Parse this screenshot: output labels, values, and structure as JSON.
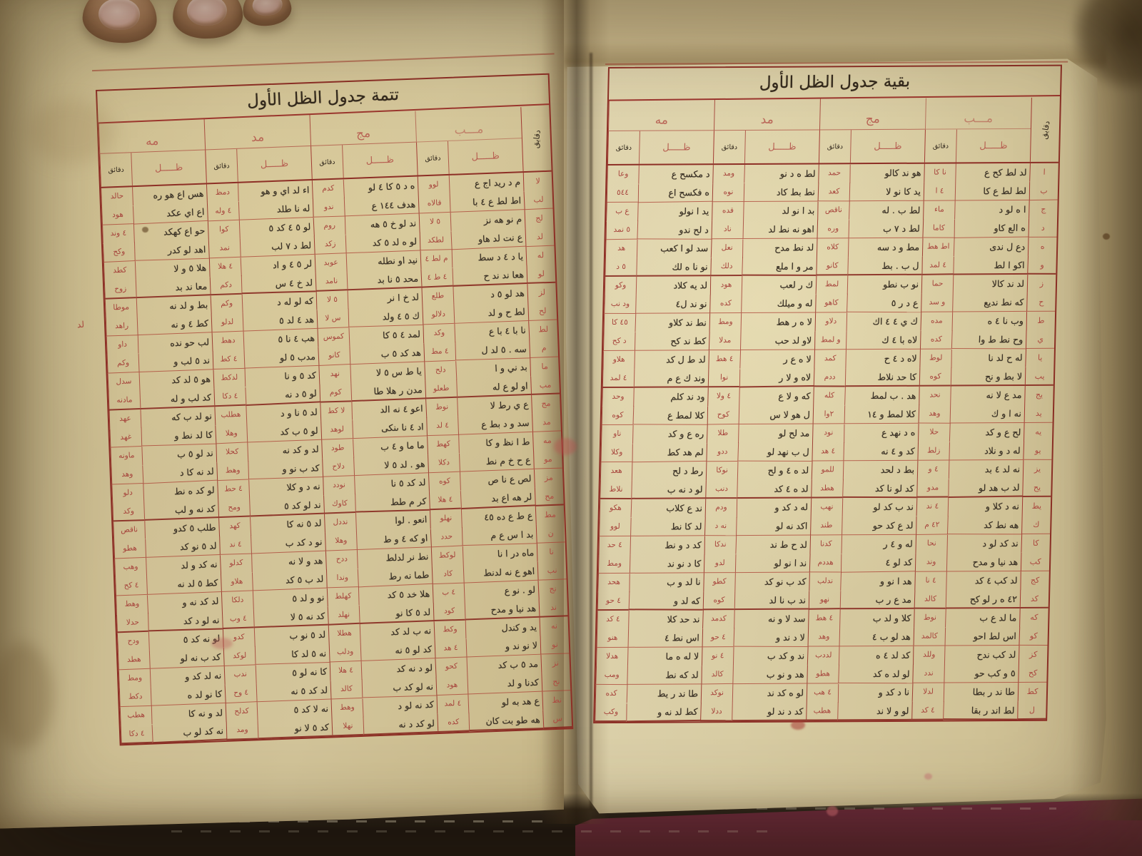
{
  "colors": {
    "paper_left": "#cfc093",
    "paper_right": "#d8cba2",
    "grid_red": "#a23a32",
    "ink_black": "#3a3126",
    "ink_red": "#a7443c",
    "cover_maroon": "#5e2433",
    "shadow_dark": "#171210",
    "skin": "#ab805f"
  },
  "right_page": {
    "title": "بقية جدول الظل الأول",
    "corner_label": "دقايق",
    "degrees": [
      "مـــب",
      "مج",
      "مد",
      "مه"
    ],
    "subhead": {
      "shadow": "ظـــــل",
      "minutes": "دقائق"
    },
    "rows": [
      [
        "ا",
        "لد لط كح ع",
        "نا كا",
        "هو ند كالو",
        "حمد",
        "لط ه د نو",
        "ومد",
        "د مكسح ع",
        "وعا"
      ],
      [
        "ب",
        "لط لط ع كا",
        "٤ ا",
        "يد كا نو لا",
        "كعد",
        "نط بط كاد",
        "نوه",
        "ه فكسح اع",
        "٥٤٤"
      ],
      [
        "ج",
        "ا ه لو د",
        "ماء",
        "لط ب . له",
        "ناقص",
        "بد ا نو لد",
        "قده",
        "يد ا نولو",
        "ع ب"
      ],
      [
        "د",
        "ه الع كاو",
        "كاما",
        "لط د ٧ ب",
        "وره",
        "اهو نه نط لد",
        "ناد",
        "د لح ندو",
        "٥ نمد"
      ],
      [
        "ه",
        "دع ل ندى",
        "اط هط",
        "مط و د سه",
        "كلاه",
        "لد نط مدح",
        "نعل",
        "سد لو ا كعب",
        "هد"
      ],
      [
        "و",
        "اكو ا لط",
        "٤ لمد",
        "ل ب . بط",
        "كانو",
        "مر و ا ملع",
        "دلك",
        "نو نا ه لك",
        "٥ د"
      ],
      [
        "ز",
        "لد ند كالا",
        "حما",
        "نو ب نطو",
        "لمط",
        "ك ر لعب",
        "هود",
        "لد يه كلاد",
        "وكو"
      ],
      [
        "ح",
        "كه نط نديع",
        "و سد",
        "ع د ر ٥",
        "كاهو",
        "له و ميلك",
        "كده",
        "نو ند ل٤",
        "ود نب"
      ],
      [
        "ط",
        "وب نا ٤ ه",
        "مده",
        "ك ي ٤ ٤ اك",
        "دلاو",
        "لا ه ر هط",
        "ومط",
        "نط ند كلاو",
        "٤٥ كا"
      ],
      [
        "ي",
        "وح نط ط وا",
        "كده",
        "لاه با ٤ ك",
        "و لمط",
        "لاو لد حب",
        "مدلا",
        "كط ند كح",
        "د كح"
      ],
      [
        "يا",
        "له ح لد نا",
        "لوط",
        "لاه د ٤ ح",
        "كمد",
        "لا ه ع ر",
        "٤ هط",
        "لد ط ل كد",
        "هلاو"
      ],
      [
        "يب",
        "لا بط و نح",
        "كوه",
        "كا حد نلاط",
        "ددم",
        "لاه و لا ر",
        "نوا",
        "وند ك ع م",
        "٤ لمد"
      ],
      [
        "يج",
        "مد ع لا نه",
        "نحد",
        "هد . ب لمط",
        "كله",
        "كه و لا ع",
        "٤ ولا",
        "ود ند كلم",
        "وحد"
      ],
      [
        "يد",
        "نه ا و ك",
        "وهد",
        "كلا لمط و ١٤",
        "٢وا",
        "ل هو لا س",
        "كوح",
        "كلا لمط ع",
        "كوه"
      ],
      [
        "يه",
        "لح ع و كد",
        "حلا",
        "ه د نهد ع",
        "نود",
        "مد لح لو",
        "طلا",
        "ره ع و كد",
        "ناو"
      ],
      [
        "يو",
        "له د و نلاد",
        "زلط",
        "كد و ٤ نه",
        "٤ هد",
        "ل ب نهد لو",
        "ددو",
        "لم هد كط",
        "وكلا"
      ],
      [
        "يز",
        "نه لد ٤ بد",
        "٤ و",
        "بط د لحد",
        "للمو",
        "لد ه ٤ و لح",
        "نوكا",
        "رط د لح",
        "هعد"
      ],
      [
        "يح",
        "لد ب هد لو",
        "مدو",
        "كد لو نا كد",
        "هطد",
        "لد ه ٤ كد",
        "دنب",
        "لو د نه ب",
        "نلاط"
      ],
      [
        "يط",
        "نه د كلا و",
        "٤ ند",
        "ند ب كد لو",
        "نهب",
        "له د كد و",
        "ودم",
        "ند ع كلاب",
        "هكو"
      ],
      [
        "ك",
        "هه نط كد",
        "٤٢ م",
        "لد ع كد حو",
        "طند",
        "اكد نه لو",
        "نه د",
        "لد كا نط",
        "لوو"
      ],
      [
        "كا",
        "ند كد لو د",
        "نحا",
        "له و ٤ ر",
        "كدنا",
        "لد ح ط ند",
        "ندكا",
        "كد د و نط",
        "٤ حد"
      ],
      [
        "كب",
        "هد نيا و مدح",
        "وند",
        "كد لو ٤",
        "هددم",
        "ند ا نو لو",
        "لدو",
        "كا د نو ند",
        "ومط"
      ],
      [
        "كج",
        "لد كب ٤ كد",
        "٤ نا",
        "هد ا نو و",
        "ندلب",
        "كد ب نو كد",
        "كطو",
        "نا لد و ب",
        "هحد"
      ],
      [
        "كد",
        "٤٢ ه ر لو كح",
        "كالد",
        "مد ع ر ب",
        "نهو",
        "ند ب نا لد",
        "كوه",
        "كه لد و",
        "٤ حو"
      ],
      [
        "كه",
        "ما لد ع ب",
        "نوط",
        "كلا و لد ب",
        "٤ هط",
        "سد لا و نه",
        "كدمد",
        "ند حد كلا",
        "٤ كد"
      ],
      [
        "كو",
        "اس لط احو",
        "كالمد",
        "هد لو ب ٤",
        "وهد",
        "لا د ند و",
        "٤ حو",
        "اس نط ٤",
        "هنو"
      ],
      [
        "كز",
        "لد كب ندح",
        "وللد",
        "كد لد ٤ ه",
        "لددب",
        "ند و كد ب",
        "٤ نو",
        "لا له ه ما",
        "هدلا"
      ],
      [
        "كح",
        "٥ و كب حو",
        "ندد",
        "لو لد ه كد",
        "هطو",
        "هد و نو ب",
        "كالد",
        "لد كه نط",
        "ومب"
      ],
      [
        "كط",
        "طا ند ر بطا",
        "لدلا",
        "نا د كد و",
        "٤ هب",
        "لو ه كد ند",
        "نوكد",
        "طا ند ر يط",
        "كده"
      ],
      [
        "ل",
        "لط اند ر بقا",
        "٤ كد",
        "لو و لا ند",
        "هطب",
        "كد د ند لو",
        "ددلا",
        "كط لد نه و",
        "وكب"
      ]
    ]
  },
  "left_page": {
    "title": "تتمة جدول الظل الأول",
    "corner_label": "دقايق",
    "degrees": [
      "مـــب",
      "مج",
      "مد",
      "مه"
    ],
    "subhead": {
      "shadow": "ظـــــل",
      "minutes": "دقائق"
    },
    "margin_note": "لد",
    "rows": [
      [
        "لا",
        "م د ريد اج ع",
        "لوو",
        "ه د ٥ كا ٤ لو",
        "كدم",
        "اء لد اي و هو",
        "دمظ",
        "هس اع هو ره",
        "حالد"
      ],
      [
        "لب",
        "اط لط ع ٤ با",
        "قالاه",
        "هدف ١٤٤ ع",
        "ندو",
        "له نا طلد",
        "٤ وله",
        "اع اي عكد",
        "هود"
      ],
      [
        "لج",
        "م نو هه نز",
        "٥ لا",
        "ند لو خ ٥ هه",
        "روم",
        "لو ٥ ٤ كد ٥",
        "كوا",
        "حو اع كهكد",
        "٤ وند"
      ],
      [
        "لد",
        "ع نت لد هاو",
        "لطكد",
        "لو ه لد ٥ كد",
        "زكد",
        "لط د ٧ لب",
        "نمد",
        "اهد لو كدر",
        "وكح"
      ],
      [
        "له",
        "يا د ٤ د سط",
        "م لط ٤",
        "نيد او نطله",
        "عوبد",
        "لر ٥ ٤ و اد",
        "٤ هلا",
        "هلا ٥ و لا",
        "كطد"
      ],
      [
        "لو",
        "هعا ند ند ح",
        "٤ ط ٤",
        "محد ٥ نا بد",
        "نامد",
        "لد خ ٤ س",
        "دكم",
        "معا ند بد",
        "زوح"
      ],
      [
        "لز",
        "هد لو ٥ د",
        "طلع",
        "لد خ ا نر",
        "٥ لا",
        "كه لو له د",
        "وكم",
        "بط و لد نه",
        "موطا"
      ],
      [
        "لح",
        "لط ح و لد",
        "دلالو",
        "ك ٥ ٤ ولد",
        "س لا",
        "هد ٤ لد ٥",
        "لدلو",
        "كط ٤ و نه",
        "راهد"
      ],
      [
        "لط",
        "نا با ٤ با ع",
        "وكد",
        "لمد ٤ ٥ كا",
        "كموس",
        "هب ٤ نا ٥",
        "دهط",
        "لب حو نده",
        "داو"
      ],
      [
        "م",
        "سه . ٥ لد ل",
        "٤ مط",
        "هد كد ٥ ب",
        "كانو",
        "مدب ٥ لو",
        "٤ كط",
        "ند ٥ لب و",
        "وكم"
      ],
      [
        "ما",
        "بد ني و ا",
        "دلح",
        "يا ط س ٥ لا",
        "نهد",
        "كد ٥ و نا",
        "لدكط",
        "هو ٥ لد كد",
        "سدل"
      ],
      [
        "مب",
        "او لو ع له",
        "طعلو",
        "مدن ر هلا طا",
        "كوم",
        "لو ٥ د نه",
        "٤ دكا",
        "كد لب و له",
        "مادنه"
      ],
      [
        "مج",
        "ع ي رط لا",
        "نوط",
        "اعو ٤ نه الد",
        "لا كط",
        "لد ٥ نا و د",
        "هطلب",
        "نو لد ب كه",
        "عهد"
      ],
      [
        "مد",
        "سد و د بط ع",
        "٤ لد",
        "اد ٤ نا ىنكى",
        "لوهد",
        "لو ٥ ب كد",
        "وهلا",
        "كا لد نط و",
        "غهد"
      ],
      [
        "مه",
        "ط ا نظ و كا",
        "كهط",
        "ما ما و ٤ ب",
        "طود",
        "لد و كد نه",
        "كحلا",
        "ند لو ٥ ب",
        "ماونه"
      ],
      [
        "مو",
        "ع ح خ م نط",
        "دكلا",
        "هو . لد ٥ لا",
        "دلاح",
        "كد ب نو و",
        "وهط",
        "لد نه كا د",
        "وهد"
      ],
      [
        "مز",
        "لص ع نا ص",
        "كوه",
        "لد كد ٥ نا",
        "نودد",
        "نه د و كلا",
        "٤ حط",
        "لو كد ه نط",
        "دلو"
      ],
      [
        "مح",
        "لر هه اع بد",
        "٤ هلا",
        "كر م طط",
        "كاوك",
        "ند لو كد ٥",
        "ومح",
        "كد نه و لب",
        "وكد"
      ],
      [
        "مط",
        "ع ط ع ده ٤٥",
        "نهلو",
        "انعو . لوا",
        "نددل",
        "لد ٥ نه كا",
        "كهد",
        "طلب ٥ كدو",
        "ناقص"
      ],
      [
        "ن",
        "بد ا س ع م",
        "حدد",
        "او كه ٤ و ط",
        "وهلا",
        "نو د كد ب",
        "٤ ند",
        "لد ٥ نو كد",
        "هطو"
      ],
      [
        "نا",
        "ماه در ا نا",
        "لوكط",
        "نط نر لدلط",
        "ددح",
        "هد و لا نه",
        "كدلو",
        "نه كد و لد",
        "وهب"
      ],
      [
        "نب",
        "اهو ع نه لدنط",
        "كاد",
        "طما نه رط",
        "وندا",
        "لد ب ٥ كد",
        "هلاو",
        "كط ٥ لد نه",
        "٤ كح"
      ],
      [
        "نج",
        "لو . نو ع",
        "٤ ب",
        "هلا خد ٥ كد",
        "كهلط",
        "نو و لد ٥",
        "دلكا",
        "لد كد نه و",
        "وهط"
      ],
      [
        "ند",
        "هد نيا و مدح",
        "كود",
        "لد ٥ كا نو",
        "نهلد",
        "كد نه ٥ لا",
        "٤ وب",
        "نه لو د كد",
        "حدلا"
      ],
      [
        "نه",
        "يد و كندل",
        "وكط",
        "نه ب لد كد",
        "هطلا",
        "لد ٥ نو ب",
        "كدو",
        "لو نه كد ٥",
        "ودح"
      ],
      [
        "نو",
        "لا نو ند و",
        "٤ هد",
        "كد لو ٥ نه",
        "ودلب",
        "نه ٥ لد كا",
        "لوكد",
        "كد ب نه لو",
        "هطد"
      ],
      [
        "نز",
        "مد ٥ ب كد",
        "كحو",
        "لو د نه كد",
        "٤ هلا",
        "كا نه لو ٥",
        "ندب",
        "نه لد كد و",
        "ومط"
      ],
      [
        "نح",
        "كدنا و لد",
        "هود",
        "نه لو كد ب",
        "كالد",
        "لد كد ٥ نه",
        "٤ وح",
        "كا نو لد ه",
        "دكط"
      ],
      [
        "نط",
        "ع هد به لو",
        "٤ لمد",
        "كد نه لو د",
        "وهط",
        "نه لا كد ٥",
        "كدلح",
        "لد و نه كا",
        "هطب"
      ],
      [
        "س",
        "هه طو بت كان",
        "كده",
        "لو كد د نه",
        "نهلا",
        "كد ٥ لا نو",
        "ومد",
        "نه كد لو ب",
        "٤ دكا"
      ]
    ]
  }
}
